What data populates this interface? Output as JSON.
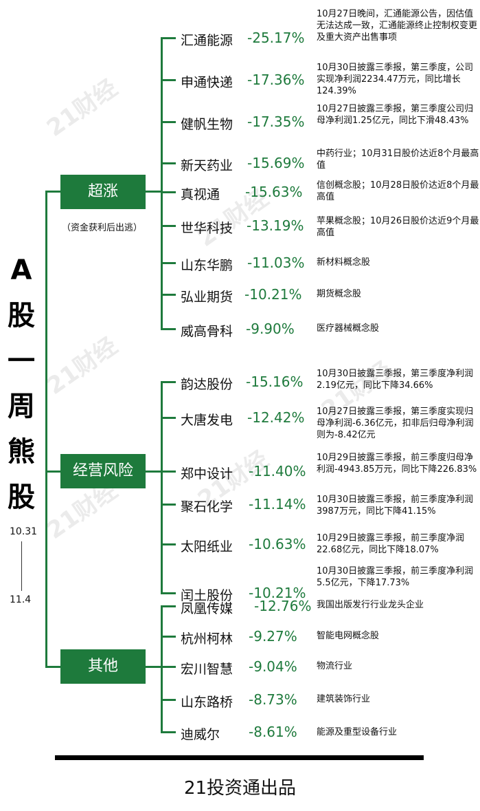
{
  "title_chars": [
    "A",
    "股",
    "一",
    "周",
    "熊",
    "股"
  ],
  "date_start": "10.31",
  "date_end": "11.4",
  "watermark": "21财经",
  "footer": "21投资通出品",
  "groups": [
    {
      "label": "超涨",
      "note": "（资金获利后出逃）"
    },
    {
      "label": "经营风险",
      "note": ""
    },
    {
      "label": "其他",
      "note": ""
    }
  ],
  "stocks": [
    {
      "name": "汇通能源",
      "pct": "-25.17%",
      "note": "10月27日晚间，汇通能源公告，因估值无法达成一致，汇通能源终止控制权变更及重大资产出售事项"
    },
    {
      "name": "申通快递",
      "pct": "-17.36%",
      "note": "10月30日披露三季报，第三季度，公司实现净利润2234.47万元，同比增长124.39%"
    },
    {
      "name": "健帆生物",
      "pct": "-17.35%",
      "note": "10月27日披露三季报，第三季度公司归母净利润1.25亿元，同比下滑48.43%"
    },
    {
      "name": "新天药业",
      "pct": "-15.69%",
      "note": "中药行业；10月31日股价达近8个月最高值"
    },
    {
      "name": "真视通",
      "pct": "-15.63%",
      "note": "信创概念股；10月28日股价达近8个月最高值"
    },
    {
      "name": "世华科技",
      "pct": "-13.19%",
      "note": "苹果概念股；10月26日股价达近9个月最高值"
    },
    {
      "name": "山东华鹏",
      "pct": "-11.03%",
      "note": "新材料概念股"
    },
    {
      "name": "弘业期货",
      "pct": "-10.21%",
      "note": "期货概念股"
    },
    {
      "name": "威高骨科",
      "pct": "-9.90%",
      "note": "医疗器械概念股"
    },
    {
      "name": "韵达股份",
      "pct": "-15.16%",
      "note": "10月30日披露三季报，第三季度净利润2.19亿元，同比下降34.66%"
    },
    {
      "name": "大唐发电",
      "pct": "-12.42%",
      "note": "10月27日披露三季报，第三季度实现归母净利润-6.36亿元，扣非后归母净利润则为-8.42亿元"
    },
    {
      "name": "郑中设计",
      "pct": "-11.40%",
      "note": "10月29日披露三季报，前三季度归母净利润-4943.85万元，同比下降226.83%"
    },
    {
      "name": "聚石化学",
      "pct": "-11.14%",
      "note": "10月30日披露三季报，前三季度净利润3987万元，同比下降41.15%"
    },
    {
      "name": "太阳纸业",
      "pct": "-10.63%",
      "note": "10月29日披露三季报，前三季度净润22.68亿元，同比下降18.07%"
    },
    {
      "name": "闰土股份",
      "pct": "-10.21%",
      "note": "10月30日披露三季报，前三季度净利润5.5亿元，下降17.73%"
    },
    {
      "name": "凤凰传媒",
      "pct": "-12.76%",
      "note": "我国出版发行行业龙头企业"
    },
    {
      "name": "杭州柯林",
      "pct": "-9.27%",
      "note": "智能电网概念股"
    },
    {
      "name": "宏川智慧",
      "pct": "-9.04%",
      "note": "物流行业"
    },
    {
      "name": "山东路桥",
      "pct": "-8.73%",
      "note": "建筑装饰行业"
    },
    {
      "name": "迪威尔",
      "pct": "-8.61%",
      "note": "能源及重型设备行业"
    }
  ]
}
